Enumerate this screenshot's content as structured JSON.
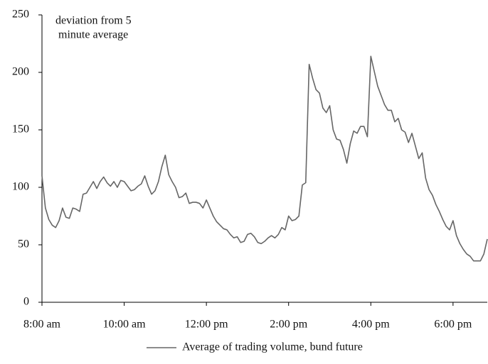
{
  "chart_data": {
    "type": "line",
    "annotation": [
      "deviation from  5",
      "minute average"
    ],
    "x": [
      480,
      485,
      490,
      495,
      500,
      505,
      510,
      515,
      520,
      525,
      530,
      535,
      540,
      545,
      550,
      555,
      560,
      565,
      570,
      575,
      580,
      585,
      590,
      595,
      600,
      605,
      610,
      615,
      620,
      625,
      630,
      635,
      640,
      645,
      650,
      655,
      660,
      665,
      670,
      675,
      680,
      685,
      690,
      695,
      700,
      705,
      710,
      715,
      720,
      725,
      730,
      735,
      740,
      745,
      750,
      755,
      760,
      765,
      770,
      775,
      780,
      785,
      790,
      795,
      800,
      805,
      810,
      815,
      820,
      825,
      830,
      835,
      840,
      845,
      850,
      855,
      860,
      865,
      870,
      875,
      880,
      885,
      890,
      895,
      900,
      905,
      910,
      915,
      920,
      925,
      930,
      935,
      940,
      945,
      950,
      955,
      960,
      965,
      970,
      975,
      980,
      985,
      990,
      995,
      1000,
      1005,
      1010,
      1015,
      1020,
      1025,
      1030,
      1035,
      1040,
      1045,
      1050,
      1055,
      1060,
      1065,
      1070,
      1075,
      1080,
      1085,
      1090,
      1095,
      1100,
      1105,
      1110,
      1115,
      1120,
      1125,
      1130
    ],
    "series": [
      {
        "name": "Average of trading volume, bund future",
        "color": "#666666",
        "values": [
          110,
          82,
          72,
          67,
          65,
          71,
          82,
          74,
          73,
          82,
          81,
          79,
          94,
          95,
          100,
          105,
          99,
          105,
          109,
          104,
          101,
          105,
          100,
          106,
          105,
          101,
          97,
          98,
          101,
          103,
          110,
          101,
          94,
          97,
          105,
          118,
          128,
          111,
          105,
          100,
          91,
          92,
          95,
          86,
          87,
          87,
          86,
          82,
          89,
          82,
          75,
          70,
          67,
          64,
          63,
          59,
          56,
          57,
          52,
          53,
          59,
          60,
          57,
          52,
          51,
          53,
          56,
          58,
          56,
          59,
          65,
          63,
          75,
          71,
          72,
          75,
          102,
          104,
          207,
          195,
          185,
          182,
          169,
          165,
          171,
          150,
          142,
          141,
          133,
          121,
          138,
          149,
          147,
          153,
          153,
          144,
          214,
          201,
          188,
          180,
          172,
          167,
          167,
          157,
          160,
          150,
          148,
          139,
          147,
          136,
          125,
          130,
          108,
          98,
          93,
          85,
          79,
          72,
          66,
          63,
          71,
          58,
          51,
          46,
          42,
          40,
          36,
          36,
          36,
          42,
          55
        ]
      }
    ],
    "xlim": [
      480,
      1130
    ],
    "xticks": [
      {
        "value": 480,
        "label": "8:00 am"
      },
      {
        "value": 600,
        "label": "10:00 am"
      },
      {
        "value": 720,
        "label": "12:00 pm"
      },
      {
        "value": 840,
        "label": "2:00 pm"
      },
      {
        "value": 960,
        "label": "4:00 pm"
      },
      {
        "value": 1080,
        "label": "6:00 pm"
      }
    ],
    "ylim": [
      0,
      250
    ],
    "yticks": [
      0,
      50,
      100,
      150,
      200,
      250
    ],
    "grid": false,
    "legend": "bottom"
  }
}
